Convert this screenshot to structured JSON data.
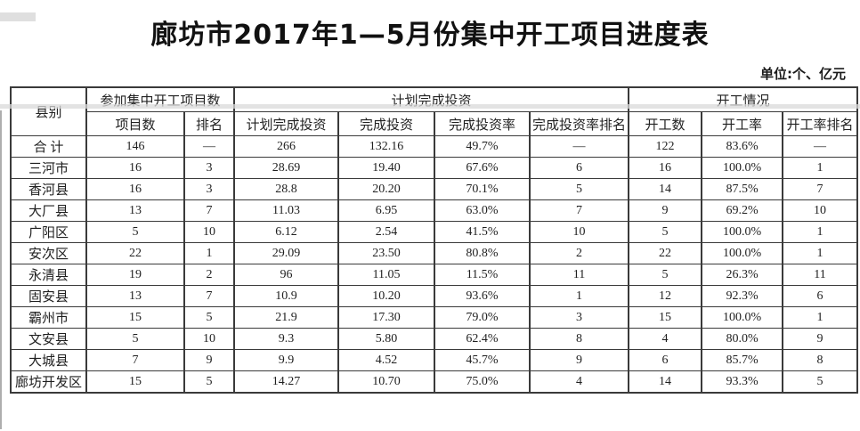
{
  "page": {
    "title": "廊坊市2017年1—5月份集中开工项目进度表",
    "unit_note": "单位:个、亿元"
  },
  "colors": {
    "text": "#1f1f1f",
    "border": "#3a3a3a",
    "background": "#ffffff"
  },
  "table": {
    "header": {
      "col_county": "县别",
      "group_participating": "参加集中开工项目数",
      "group_planned_investment": "计划完成投资",
      "group_commencement": "开工情况",
      "sub_project_count": "项目数",
      "sub_rank": "排名",
      "sub_planned_investment": "计划完成投资",
      "sub_completed_investment": "完成投资",
      "sub_completion_rate": "完成投资率",
      "sub_completion_rate_rank": "完成投资率排名",
      "sub_started_count": "开工数",
      "sub_start_rate": "开工率",
      "sub_start_rate_rank": "开工率排名"
    },
    "rows": [
      {
        "county": "合 计",
        "cells": [
          "146",
          "—",
          "266",
          "132.16",
          "49.7%",
          "—",
          "122",
          "83.6%",
          "—"
        ]
      },
      {
        "county": "三河市",
        "cells": [
          "16",
          "3",
          "28.69",
          "19.40",
          "67.6%",
          "6",
          "16",
          "100.0%",
          "1"
        ]
      },
      {
        "county": "香河县",
        "cells": [
          "16",
          "3",
          "28.8",
          "20.20",
          "70.1%",
          "5",
          "14",
          "87.5%",
          "7"
        ]
      },
      {
        "county": "大厂县",
        "cells": [
          "13",
          "7",
          "11.03",
          "6.95",
          "63.0%",
          "7",
          "9",
          "69.2%",
          "10"
        ]
      },
      {
        "county": "广阳区",
        "cells": [
          "5",
          "10",
          "6.12",
          "2.54",
          "41.5%",
          "10",
          "5",
          "100.0%",
          "1"
        ]
      },
      {
        "county": "安次区",
        "cells": [
          "22",
          "1",
          "29.09",
          "23.50",
          "80.8%",
          "2",
          "22",
          "100.0%",
          "1"
        ]
      },
      {
        "county": "永清县",
        "cells": [
          "19",
          "2",
          "96",
          "11.05",
          "11.5%",
          "11",
          "5",
          "26.3%",
          "11"
        ]
      },
      {
        "county": "固安县",
        "cells": [
          "13",
          "7",
          "10.9",
          "10.20",
          "93.6%",
          "1",
          "12",
          "92.3%",
          "6"
        ]
      },
      {
        "county": "霸州市",
        "cells": [
          "15",
          "5",
          "21.9",
          "17.30",
          "79.0%",
          "3",
          "15",
          "100.0%",
          "1"
        ]
      },
      {
        "county": "文安县",
        "cells": [
          "5",
          "10",
          "9.3",
          "5.80",
          "62.4%",
          "8",
          "4",
          "80.0%",
          "9"
        ]
      },
      {
        "county": "大城县",
        "cells": [
          "7",
          "9",
          "9.9",
          "4.52",
          "45.7%",
          "9",
          "6",
          "85.7%",
          "8"
        ]
      },
      {
        "county": "廊坊开发区",
        "cells": [
          "15",
          "5",
          "14.27",
          "10.70",
          "75.0%",
          "4",
          "14",
          "93.3%",
          "5"
        ]
      }
    ]
  }
}
